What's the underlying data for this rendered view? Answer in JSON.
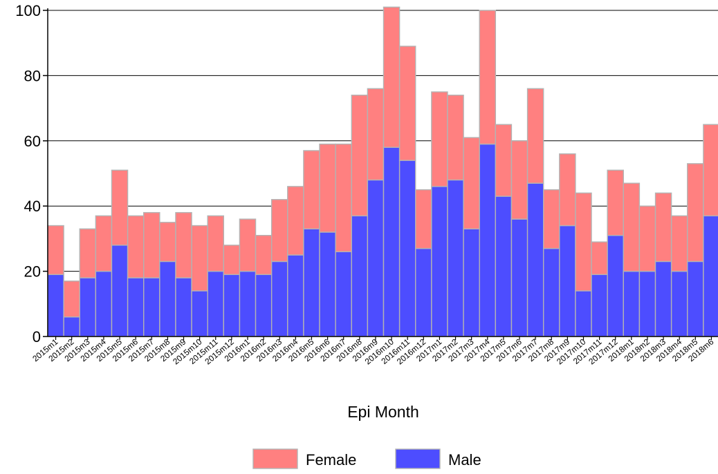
{
  "chart_data": {
    "type": "bar",
    "stacked": true,
    "title": "",
    "xlabel": "Epi Month",
    "ylabel": "",
    "ylim": [
      0,
      100
    ],
    "yticks": [
      0,
      20,
      40,
      60,
      80,
      100
    ],
    "grid": true,
    "legend_position": "bottom",
    "categories": [
      "2015m1",
      "2015m2",
      "2015m3",
      "2015m4",
      "2015m5",
      "2015m6",
      "2015m7",
      "2015m8",
      "2015m9",
      "2015m10",
      "2015m11",
      "2015m12",
      "2016m1",
      "2016m2",
      "2016m3",
      "2016m4",
      "2016m5",
      "2016m6",
      "2016m7",
      "2016m8",
      "2016m9",
      "2016m10",
      "2016m11",
      "2016m12",
      "2017m1",
      "2017m2",
      "2017m3",
      "2017m4",
      "2017m5",
      "2017m6",
      "2017m7",
      "2017m8",
      "2017m9",
      "2017m10",
      "2017m11",
      "2017m12",
      "2018m1",
      "2018m2",
      "2018m3",
      "2018m4",
      "2018m5",
      "2018m6"
    ],
    "series": [
      {
        "name": "Male",
        "color": "#4d4dff",
        "values": [
          19,
          6,
          18,
          20,
          28,
          18,
          18,
          23,
          18,
          14,
          20,
          19,
          20,
          19,
          23,
          25,
          33,
          32,
          26,
          37,
          48,
          58,
          54,
          27,
          46,
          48,
          33,
          59,
          43,
          36,
          47,
          27,
          34,
          14,
          19,
          31,
          20,
          20,
          23,
          20,
          23,
          37
        ]
      },
      {
        "name": "Female",
        "color": "#ff8080",
        "values": [
          15,
          11,
          15,
          17,
          23,
          19,
          20,
          12,
          20,
          20,
          17,
          9,
          16,
          12,
          19,
          21,
          24,
          27,
          33,
          37,
          28,
          43,
          35,
          18,
          29,
          26,
          28,
          41,
          22,
          24,
          29,
          18,
          22,
          30,
          10,
          20,
          27,
          20,
          21,
          17,
          30,
          28
        ]
      }
    ],
    "legend_order": [
      "Female",
      "Male"
    ]
  }
}
